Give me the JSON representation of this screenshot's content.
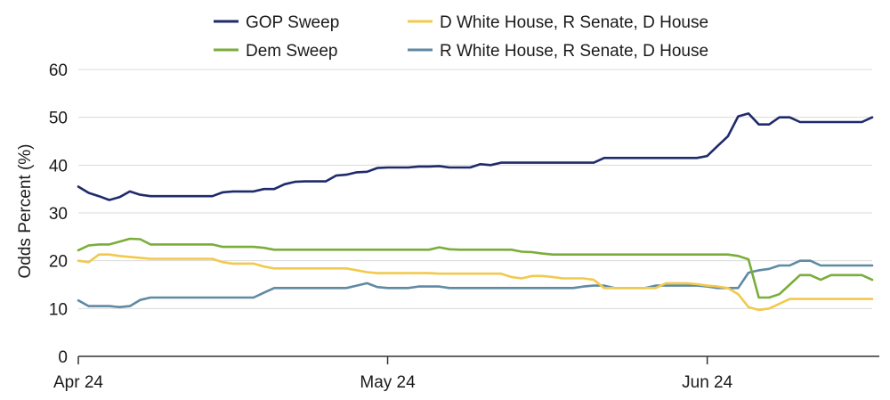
{
  "chart_data": {
    "type": "line",
    "title": "",
    "xlabel": "",
    "ylabel": "Odds Percent (%)",
    "ylim": [
      0,
      60
    ],
    "yticks": [
      0,
      10,
      20,
      30,
      40,
      50,
      60
    ],
    "xlim": [
      0,
      77
    ],
    "xticks": [
      {
        "label": "Apr 24",
        "x": 0
      },
      {
        "label": "May 24",
        "x": 30
      },
      {
        "label": "Jun 24",
        "x": 61
      }
    ],
    "grid": "horizontal",
    "legend_position": "top",
    "series": [
      {
        "name": "GOP Sweep",
        "color": "#1f2a6b",
        "x": [
          0,
          1,
          2,
          3,
          4,
          5,
          6,
          7,
          8,
          9,
          10,
          11,
          12,
          13,
          14,
          15,
          16,
          17,
          18,
          19,
          20,
          21,
          22,
          23,
          24,
          25,
          26,
          27,
          28,
          29,
          30,
          31,
          32,
          33,
          34,
          35,
          36,
          37,
          38,
          39,
          40,
          41,
          42,
          43,
          44,
          45,
          46,
          47,
          48,
          49,
          50,
          51,
          52,
          53,
          54,
          55,
          56,
          57,
          58,
          59,
          60,
          61,
          62,
          63,
          64,
          65,
          66,
          67,
          68,
          69,
          70,
          71,
          72,
          73,
          74,
          75,
          76,
          77
        ],
        "values": [
          35.5,
          34.2,
          33.5,
          32.7,
          33.3,
          34.5,
          33.8,
          33.5,
          33.5,
          33.5,
          33.5,
          33.5,
          33.5,
          33.5,
          34.3,
          34.5,
          34.5,
          34.5,
          35.0,
          35.0,
          36.0,
          36.5,
          36.6,
          36.6,
          36.6,
          37.8,
          38.0,
          38.5,
          38.6,
          39.4,
          39.5,
          39.5,
          39.5,
          39.7,
          39.7,
          39.8,
          39.5,
          39.5,
          39.5,
          40.2,
          40.0,
          40.5,
          40.5,
          40.5,
          40.5,
          40.5,
          40.5,
          40.5,
          40.5,
          40.5,
          40.5,
          41.5,
          41.5,
          41.5,
          41.5,
          41.5,
          41.5,
          41.5,
          41.5,
          41.5,
          41.5,
          41.9,
          44.0,
          46.0,
          50.2,
          50.8,
          48.5,
          48.5,
          50.0,
          50.0,
          49.0,
          49.0,
          49.0,
          49.0,
          49.0,
          49.0,
          49.0,
          50.0
        ]
      },
      {
        "name": "Dem Sweep",
        "color": "#7aad3a",
        "x": [
          0,
          1,
          2,
          3,
          4,
          5,
          6,
          7,
          8,
          9,
          10,
          11,
          12,
          13,
          14,
          15,
          16,
          17,
          18,
          19,
          20,
          21,
          22,
          23,
          24,
          25,
          26,
          27,
          28,
          29,
          30,
          31,
          32,
          33,
          34,
          35,
          36,
          37,
          38,
          39,
          40,
          41,
          42,
          43,
          44,
          45,
          46,
          47,
          48,
          49,
          50,
          51,
          52,
          53,
          54,
          55,
          56,
          57,
          58,
          59,
          60,
          61,
          62,
          63,
          64,
          65,
          66,
          67,
          68,
          69,
          70,
          71,
          72,
          73,
          74,
          75,
          76,
          77
        ],
        "values": [
          22.2,
          23.2,
          23.4,
          23.4,
          24.0,
          24.6,
          24.5,
          23.4,
          23.4,
          23.4,
          23.4,
          23.4,
          23.4,
          23.4,
          22.9,
          22.9,
          22.9,
          22.9,
          22.7,
          22.3,
          22.3,
          22.3,
          22.3,
          22.3,
          22.3,
          22.3,
          22.3,
          22.3,
          22.3,
          22.3,
          22.3,
          22.3,
          22.3,
          22.3,
          22.3,
          22.8,
          22.4,
          22.3,
          22.3,
          22.3,
          22.3,
          22.3,
          22.3,
          21.9,
          21.8,
          21.5,
          21.3,
          21.3,
          21.3,
          21.3,
          21.3,
          21.3,
          21.3,
          21.3,
          21.3,
          21.3,
          21.3,
          21.3,
          21.3,
          21.3,
          21.3,
          21.3,
          21.3,
          21.3,
          21.0,
          20.3,
          12.3,
          12.3,
          13.0,
          15.0,
          17.0,
          17.0,
          16.0,
          17.0,
          17.0,
          17.0,
          17.0,
          16.0
        ]
      },
      {
        "name": "D White House, R Senate, D House",
        "color": "#f2c94c",
        "x": [
          0,
          1,
          2,
          3,
          4,
          5,
          6,
          7,
          8,
          9,
          10,
          11,
          12,
          13,
          14,
          15,
          16,
          17,
          18,
          19,
          20,
          21,
          22,
          23,
          24,
          25,
          26,
          27,
          28,
          29,
          30,
          31,
          32,
          33,
          34,
          35,
          36,
          37,
          38,
          39,
          40,
          41,
          42,
          43,
          44,
          45,
          46,
          47,
          48,
          49,
          50,
          51,
          52,
          53,
          54,
          55,
          56,
          57,
          58,
          59,
          60,
          61,
          62,
          63,
          64,
          65,
          66,
          67,
          68,
          69,
          70,
          71,
          72,
          73,
          74,
          75,
          76,
          77
        ],
        "values": [
          20.0,
          19.7,
          21.3,
          21.3,
          21.0,
          20.8,
          20.6,
          20.4,
          20.4,
          20.4,
          20.4,
          20.4,
          20.4,
          20.4,
          19.7,
          19.4,
          19.4,
          19.4,
          18.8,
          18.4,
          18.4,
          18.4,
          18.4,
          18.4,
          18.4,
          18.4,
          18.4,
          18.0,
          17.6,
          17.4,
          17.4,
          17.4,
          17.4,
          17.4,
          17.4,
          17.3,
          17.3,
          17.3,
          17.3,
          17.3,
          17.3,
          17.3,
          16.6,
          16.3,
          16.8,
          16.8,
          16.6,
          16.3,
          16.3,
          16.3,
          16.0,
          14.3,
          14.3,
          14.3,
          14.3,
          14.3,
          14.3,
          15.3,
          15.3,
          15.3,
          15.1,
          14.8,
          14.6,
          14.3,
          13.0,
          10.3,
          9.7,
          10.0,
          11.0,
          12.0,
          12.0,
          12.0,
          12.0,
          12.0,
          12.0,
          12.0,
          12.0,
          12.0
        ]
      },
      {
        "name": "R White House, R Senate, D House",
        "color": "#5f8aa3",
        "x": [
          0,
          1,
          2,
          3,
          4,
          5,
          6,
          7,
          8,
          9,
          10,
          11,
          12,
          13,
          14,
          15,
          16,
          17,
          18,
          19,
          20,
          21,
          22,
          23,
          24,
          25,
          26,
          27,
          28,
          29,
          30,
          31,
          32,
          33,
          34,
          35,
          36,
          37,
          38,
          39,
          40,
          41,
          42,
          43,
          44,
          45,
          46,
          47,
          48,
          49,
          50,
          51,
          52,
          53,
          54,
          55,
          56,
          57,
          58,
          59,
          60,
          61,
          62,
          63,
          64,
          65,
          66,
          67,
          68,
          69,
          70,
          71,
          72,
          73,
          74,
          75,
          76,
          77
        ],
        "values": [
          11.7,
          10.5,
          10.5,
          10.5,
          10.3,
          10.5,
          11.8,
          12.3,
          12.3,
          12.3,
          12.3,
          12.3,
          12.3,
          12.3,
          12.3,
          12.3,
          12.3,
          12.3,
          13.3,
          14.3,
          14.3,
          14.3,
          14.3,
          14.3,
          14.3,
          14.3,
          14.3,
          14.8,
          15.3,
          14.5,
          14.3,
          14.3,
          14.3,
          14.6,
          14.6,
          14.6,
          14.3,
          14.3,
          14.3,
          14.3,
          14.3,
          14.3,
          14.3,
          14.3,
          14.3,
          14.3,
          14.3,
          14.3,
          14.3,
          14.6,
          14.8,
          14.8,
          14.3,
          14.3,
          14.3,
          14.3,
          14.8,
          14.8,
          14.8,
          14.8,
          14.8,
          14.6,
          14.3,
          14.3,
          14.3,
          17.5,
          18.0,
          18.3,
          19.0,
          19.0,
          20.0,
          20.0,
          19.0,
          19.0,
          19.0,
          19.0,
          19.0,
          19.0
        ]
      }
    ]
  }
}
